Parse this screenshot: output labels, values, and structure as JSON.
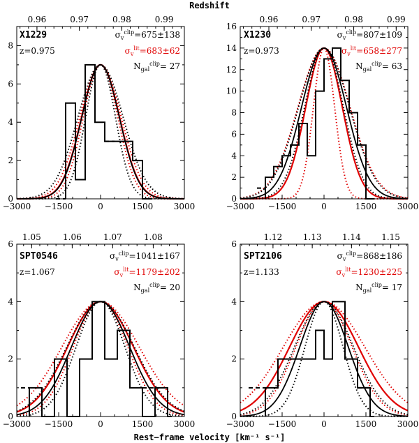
{
  "figure": {
    "top_title": "Redshift",
    "bottom_title": "Rest−frame velocity [km⁻¹ s⁻¹]"
  },
  "colors": {
    "black": "#000000",
    "red": "#e00000"
  },
  "chart_data": [
    {
      "type": "histogram",
      "name": "X1229",
      "z_label": "z=0.975",
      "redshift": 0.975,
      "sigma_clip_label": "σv clip=675±138",
      "sigma_clip_value": "675±138",
      "sigma_lit_value": "683±62",
      "ngal_value": "27",
      "sigma_clip": 675,
      "sigma_clip_err": 138,
      "sigma_lit": 683,
      "sigma_lit_err": 62,
      "xlim": [
        -3000,
        3000
      ],
      "ylim": [
        0,
        9
      ],
      "xticks": [
        -3000,
        -1500,
        0,
        1500,
        3000
      ],
      "yticks": [
        0,
        2,
        4,
        6,
        8
      ],
      "redshift_ticks": [
        0.96,
        0.97,
        0.98,
        0.99
      ],
      "redshift_tick_labels": [
        "0.96",
        "0.97",
        "0.98",
        "0.99"
      ],
      "bins": [
        {
          "x0": -1250,
          "x1": -900,
          "count": 5
        },
        {
          "x0": -900,
          "x1": -550,
          "count": 1
        },
        {
          "x0": -550,
          "x1": -200,
          "count": 7
        },
        {
          "x0": -200,
          "x1": 150,
          "count": 4
        },
        {
          "x0": 150,
          "x1": 500,
          "count": 3
        },
        {
          "x0": 500,
          "x1": 1150,
          "count": 3
        },
        {
          "x0": 1150,
          "x1": 1500,
          "count": 2
        },
        {
          "x0": 1500,
          "x1": 1850,
          "count": 0
        }
      ],
      "dashed_steps": [
        {
          "x0": -1600,
          "x1": -1250,
          "count": 0
        },
        {
          "x0": 150,
          "x1": 500,
          "count": 3
        }
      ],
      "peak": 7
    },
    {
      "type": "histogram",
      "name": "X1230",
      "z_label": "z=0.973",
      "redshift": 0.973,
      "sigma_clip_value": "807±109",
      "sigma_lit_value": "658±277",
      "ngal_value": "63",
      "sigma_clip": 807,
      "sigma_clip_err": 109,
      "sigma_lit": 658,
      "sigma_lit_err": 277,
      "xlim": [
        -3000,
        3000
      ],
      "ylim": [
        0,
        16
      ],
      "xticks": [
        -3000,
        -1500,
        0,
        1500,
        3000
      ],
      "yticks": [
        0,
        2,
        4,
        6,
        8,
        10,
        12,
        14,
        16
      ],
      "redshift_ticks": [
        0.96,
        0.97,
        0.98,
        0.99
      ],
      "redshift_tick_labels": [
        "0.96",
        "0.97",
        "0.98",
        "0.99"
      ],
      "bins": [
        {
          "x0": -2100,
          "x1": -1800,
          "count": 2
        },
        {
          "x0": -1800,
          "x1": -1500,
          "count": 3
        },
        {
          "x0": -1500,
          "x1": -1200,
          "count": 4
        },
        {
          "x0": -1200,
          "x1": -900,
          "count": 5
        },
        {
          "x0": -900,
          "x1": -600,
          "count": 7
        },
        {
          "x0": -600,
          "x1": -300,
          "count": 4
        },
        {
          "x0": -300,
          "x1": 0,
          "count": 10
        },
        {
          "x0": 0,
          "x1": 300,
          "count": 13
        },
        {
          "x0": 300,
          "x1": 600,
          "count": 14
        },
        {
          "x0": 600,
          "x1": 900,
          "count": 11
        },
        {
          "x0": 900,
          "x1": 1200,
          "count": 8
        },
        {
          "x0": 1200,
          "x1": 1500,
          "count": 5
        },
        {
          "x0": 1500,
          "x1": 1800,
          "count": 0
        }
      ],
      "dashed_steps": [
        {
          "x0": -2400,
          "x1": -2100,
          "count": 1
        }
      ],
      "peak": 14
    },
    {
      "type": "histogram",
      "name": "SPT0546",
      "z_label": "z=1.067",
      "redshift": 1.067,
      "sigma_clip_value": "1041±167",
      "sigma_lit_value": "1179±202",
      "ngal_value": "20",
      "sigma_clip": 1041,
      "sigma_clip_err": 167,
      "sigma_lit": 1179,
      "sigma_lit_err": 202,
      "xlim": [
        -3000,
        3000
      ],
      "ylim": [
        0,
        6
      ],
      "xticks": [
        -3000,
        -1500,
        0,
        1500,
        3000
      ],
      "yticks": [
        0,
        2,
        4,
        6
      ],
      "redshift_ticks": [
        1.05,
        1.06,
        1.07,
        1.08
      ],
      "redshift_tick_labels": [
        "1.05",
        "1.06",
        "1.07",
        "1.08"
      ],
      "bins": [
        {
          "x0": -2550,
          "x1": -2100,
          "count": 1
        },
        {
          "x0": -2100,
          "x1": -1650,
          "count": 0
        },
        {
          "x0": -1650,
          "x1": -1200,
          "count": 2
        },
        {
          "x0": -1200,
          "x1": -750,
          "count": 0
        },
        {
          "x0": -750,
          "x1": -300,
          "count": 2
        },
        {
          "x0": -300,
          "x1": 150,
          "count": 4
        },
        {
          "x0": 150,
          "x1": 600,
          "count": 2
        },
        {
          "x0": 600,
          "x1": 1050,
          "count": 3
        },
        {
          "x0": 1050,
          "x1": 1500,
          "count": 1
        },
        {
          "x0": 1500,
          "x1": 1950,
          "count": 0
        },
        {
          "x0": 1950,
          "x1": 2400,
          "count": 1
        },
        {
          "x0": 2400,
          "x1": 2550,
          "count": 0
        }
      ],
      "dashed_steps": [
        {
          "x0": -2850,
          "x1": -2550,
          "count": 1
        },
        {
          "x0": 1500,
          "x1": 1950,
          "count": 1
        }
      ],
      "peak": 4
    },
    {
      "type": "histogram",
      "name": "SPT2106",
      "z_label": "z=1.133",
      "redshift": 1.133,
      "sigma_clip_value": "868±186",
      "sigma_lit_value": "1230±225",
      "ngal_value": "17",
      "sigma_clip": 868,
      "sigma_clip_err": 186,
      "sigma_lit": 1230,
      "sigma_lit_err": 225,
      "xlim": [
        -3000,
        3000
      ],
      "ylim": [
        0,
        6
      ],
      "xticks": [
        -3000,
        -1500,
        0,
        1500,
        3000
      ],
      "yticks": [
        0,
        2,
        4,
        6
      ],
      "redshift_ticks": [
        1.12,
        1.13,
        1.14,
        1.15
      ],
      "redshift_tick_labels": [
        "1.12",
        "1.13",
        "1.14",
        "1.15"
      ],
      "bins": [
        {
          "x0": -2100,
          "x1": -1650,
          "count": 1
        },
        {
          "x0": -1650,
          "x1": -1200,
          "count": 2
        },
        {
          "x0": -1200,
          "x1": -750,
          "count": 2
        },
        {
          "x0": -750,
          "x1": -300,
          "count": 2
        },
        {
          "x0": -300,
          "x1": 0,
          "count": 3
        },
        {
          "x0": 0,
          "x1": 300,
          "count": 2
        },
        {
          "x0": 300,
          "x1": 750,
          "count": 4
        },
        {
          "x0": 750,
          "x1": 1200,
          "count": 2
        },
        {
          "x0": 1200,
          "x1": 1650,
          "count": 1
        },
        {
          "x0": 1650,
          "x1": 1800,
          "count": 0
        }
      ],
      "dashed_steps": [
        {
          "x0": -2700,
          "x1": -2100,
          "count": 1
        },
        {
          "x0": 1200,
          "x1": 1650,
          "count": 1
        }
      ],
      "peak": 4
    }
  ]
}
